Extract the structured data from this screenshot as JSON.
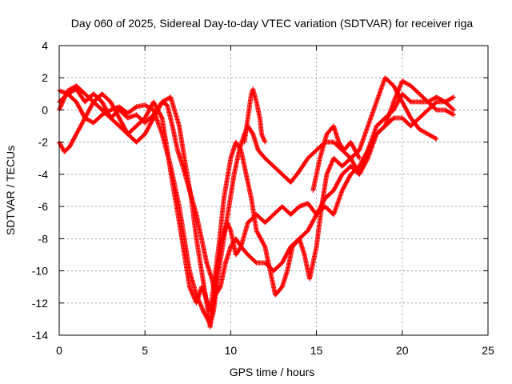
{
  "chart_data": {
    "type": "scatter",
    "title": "Day 060 of 2025, Sidereal Day-to-day VTEC variation (SDTVAR) for receiver riga",
    "xlabel": "GPS time / hours",
    "ylabel": "SDTVAR / TECUs",
    "xlim": [
      0,
      25
    ],
    "ylim": [
      -14,
      4
    ],
    "xticks": [
      0,
      5,
      10,
      15,
      20,
      25
    ],
    "yticks": [
      -14,
      -12,
      -10,
      -8,
      -6,
      -4,
      -2,
      0,
      2,
      4
    ],
    "grid": true,
    "marker": "+",
    "color": "#ff0000",
    "series": [
      {
        "points": [
          [
            0.0,
            1.2
          ],
          [
            0.5,
            1.0
          ],
          [
            1.0,
            0.5
          ],
          [
            1.5,
            -0.5
          ],
          [
            2.0,
            -0.8
          ],
          [
            2.5,
            -0.3
          ],
          [
            3.0,
            0.0
          ],
          [
            3.5,
            0.2
          ],
          [
            4.0,
            -0.2
          ],
          [
            4.5,
            0.2
          ],
          [
            5.0,
            0.3
          ],
          [
            5.5,
            0.0
          ],
          [
            6.0,
            -1.5
          ],
          [
            6.5,
            -3.5
          ],
          [
            7.0,
            -6.0
          ],
          [
            7.3,
            -8.0
          ],
          [
            7.6,
            -10.0
          ],
          [
            8.0,
            -11.5
          ],
          [
            8.4,
            -12.5
          ],
          [
            8.8,
            -13.3
          ],
          [
            9.0,
            -12.5
          ],
          [
            9.3,
            -10.0
          ],
          [
            9.6,
            -8.0
          ],
          [
            9.9,
            -6.0
          ],
          [
            10.2,
            -4.0
          ],
          [
            10.5,
            -2.5
          ],
          [
            10.8,
            -1.5
          ],
          [
            11.0,
            -1.0
          ],
          [
            11.3,
            -1.5
          ],
          [
            11.6,
            -2.5
          ],
          [
            12.0,
            -3.0
          ],
          [
            12.5,
            -3.5
          ],
          [
            13.0,
            -4.0
          ],
          [
            13.5,
            -4.5
          ],
          [
            14.0,
            -3.8
          ],
          [
            14.5,
            -3.0
          ],
          [
            15.0,
            -2.5
          ],
          [
            15.5,
            -2.0
          ],
          [
            16.0,
            -2.0
          ],
          [
            16.5,
            -2.5
          ],
          [
            17.0,
            -3.0
          ],
          [
            17.5,
            -2.5
          ],
          [
            18.0,
            -1.0
          ],
          [
            18.5,
            0.5
          ],
          [
            19.0,
            2.0
          ],
          [
            19.5,
            1.5
          ],
          [
            20.0,
            0.5
          ],
          [
            20.5,
            -0.5
          ],
          [
            21.0,
            -1.2
          ],
          [
            21.5,
            -1.5
          ],
          [
            22.0,
            -1.8
          ]
        ]
      },
      {
        "points": [
          [
            0.0,
            -2.0
          ],
          [
            0.3,
            -2.6
          ],
          [
            0.6,
            -2.3
          ],
          [
            1.0,
            -1.5
          ],
          [
            1.5,
            -0.5
          ],
          [
            2.0,
            0.5
          ],
          [
            2.5,
            1.0
          ],
          [
            3.0,
            0.5
          ],
          [
            3.5,
            -0.5
          ],
          [
            4.0,
            -1.5
          ],
          [
            4.5,
            -2.0
          ],
          [
            5.0,
            -1.5
          ],
          [
            5.5,
            -0.5
          ],
          [
            6.0,
            0.5
          ],
          [
            6.5,
            0.8
          ],
          [
            7.0,
            -1.0
          ],
          [
            7.3,
            -3.0
          ],
          [
            7.7,
            -5.5
          ],
          [
            8.0,
            -8.0
          ],
          [
            8.3,
            -10.0
          ],
          [
            8.6,
            -12.0
          ],
          [
            8.8,
            -13.5
          ],
          [
            9.0,
            -12.0
          ],
          [
            9.2,
            -10.0
          ],
          [
            9.5,
            -8.0
          ],
          [
            9.8,
            -7.0
          ],
          [
            10.0,
            -7.5
          ],
          [
            10.3,
            -9.0
          ],
          [
            10.6,
            -8.5
          ],
          [
            11.0,
            -7.0
          ],
          [
            11.5,
            -6.5
          ],
          [
            12.0,
            -7.0
          ],
          [
            12.5,
            -6.5
          ],
          [
            13.0,
            -6.0
          ],
          [
            13.5,
            -6.5
          ],
          [
            14.0,
            -6.0
          ],
          [
            14.5,
            -5.8
          ],
          [
            15.0,
            -6.5
          ],
          [
            15.5,
            -6.0
          ],
          [
            16.0,
            -6.5
          ],
          [
            16.5,
            -5.0
          ],
          [
            17.0,
            -4.0
          ],
          [
            17.5,
            -3.5
          ],
          [
            18.0,
            -2.5
          ],
          [
            18.5,
            -1.0
          ],
          [
            19.0,
            -0.5
          ],
          [
            19.5,
            0.0
          ],
          [
            20.0,
            1.0
          ],
          [
            20.5,
            0.5
          ],
          [
            21.0,
            0.5
          ],
          [
            21.5,
            0.5
          ],
          [
            22.0,
            0.8
          ],
          [
            22.5,
            0.5
          ],
          [
            23.0,
            0.0
          ]
        ]
      },
      {
        "points": [
          [
            0.0,
            0.5
          ],
          [
            0.5,
            1.0
          ],
          [
            1.0,
            1.3
          ],
          [
            1.5,
            0.5
          ],
          [
            2.0,
            1.0
          ],
          [
            2.5,
            0.5
          ],
          [
            3.0,
            -0.5
          ],
          [
            3.5,
            -1.0
          ],
          [
            4.0,
            -1.5
          ],
          [
            4.5,
            -1.0
          ],
          [
            5.0,
            -0.5
          ],
          [
            5.5,
            0.5
          ],
          [
            6.0,
            -0.5
          ],
          [
            6.3,
            -2.5
          ],
          [
            6.6,
            -4.5
          ],
          [
            7.0,
            -7.0
          ],
          [
            7.3,
            -9.0
          ],
          [
            7.6,
            -11.0
          ],
          [
            8.0,
            -12.0
          ],
          [
            8.3,
            -11.0
          ],
          [
            8.5,
            -11.5
          ],
          [
            8.8,
            -12.5
          ],
          [
            9.0,
            -11.0
          ],
          [
            9.3,
            -8.5
          ],
          [
            9.6,
            -5.5
          ],
          [
            10.0,
            -3.0
          ],
          [
            10.3,
            -2.0
          ],
          [
            10.6,
            -2.5
          ],
          [
            10.9,
            -4.0
          ],
          [
            11.2,
            -5.5
          ],
          [
            11.5,
            -7.5
          ],
          [
            12.0,
            -8.5
          ],
          [
            12.3,
            -10.0
          ],
          [
            12.6,
            -11.5
          ],
          [
            13.0,
            -11.0
          ],
          [
            13.3,
            -10.0
          ],
          [
            13.6,
            -8.5
          ],
          [
            14.0,
            -8.0
          ],
          [
            14.3,
            -9.0
          ],
          [
            14.6,
            -10.5
          ],
          [
            15.0,
            -8.5
          ],
          [
            15.3,
            -6.0
          ],
          [
            15.6,
            -4.0
          ],
          [
            16.0,
            -3.0
          ],
          [
            16.5,
            -3.5
          ],
          [
            17.0,
            -3.0
          ],
          [
            17.5,
            -4.0
          ],
          [
            18.0,
            -3.0
          ],
          [
            18.5,
            -1.5
          ],
          [
            19.0,
            -1.0
          ],
          [
            19.5,
            -0.5
          ],
          [
            20.0,
            -0.5
          ],
          [
            20.5,
            -1.0
          ],
          [
            21.0,
            -0.5
          ],
          [
            21.5,
            0.0
          ],
          [
            22.0,
            0.5
          ],
          [
            22.5,
            0.5
          ],
          [
            23.0,
            0.8
          ]
        ]
      },
      {
        "points": [
          [
            0.0,
            0.0
          ],
          [
            0.5,
            1.2
          ],
          [
            1.0,
            1.5
          ],
          [
            1.5,
            1.0
          ],
          [
            2.0,
            0.5
          ],
          [
            2.5,
            0.0
          ],
          [
            3.0,
            -0.5
          ],
          [
            3.5,
            0.0
          ],
          [
            4.0,
            -0.5
          ],
          [
            4.5,
            -0.3
          ],
          [
            5.0,
            -0.8
          ],
          [
            5.5,
            -0.3
          ],
          [
            6.0,
            0.5
          ],
          [
            6.3,
            0.3
          ],
          [
            6.6,
            -1.0
          ],
          [
            6.9,
            -2.5
          ],
          [
            7.2,
            -3.5
          ],
          [
            7.6,
            -5.0
          ],
          [
            8.0,
            -6.5
          ],
          [
            8.3,
            -8.0
          ],
          [
            8.6,
            -9.5
          ],
          [
            8.9,
            -10.5
          ],
          [
            9.1,
            -11.5
          ],
          [
            9.4,
            -11.0
          ],
          [
            9.7,
            -9.5
          ],
          [
            10.0,
            -8.5
          ],
          [
            10.3,
            -8.0
          ],
          [
            10.6,
            -8.5
          ],
          [
            11.0,
            -9.0
          ],
          [
            11.5,
            -9.5
          ],
          [
            12.0,
            -9.5
          ],
          [
            12.5,
            -10.0
          ],
          [
            13.0,
            -9.5
          ],
          [
            13.5,
            -8.5
          ],
          [
            14.0,
            -8.0
          ],
          [
            14.5,
            -7.5
          ],
          [
            15.0,
            -6.5
          ],
          [
            15.5,
            -5.5
          ],
          [
            16.0,
            -5.0
          ],
          [
            16.5,
            -4.0
          ],
          [
            17.0,
            -3.5
          ],
          [
            17.5,
            -4.0
          ],
          [
            18.0,
            -2.5
          ],
          [
            18.5,
            -1.5
          ],
          [
            19.0,
            -1.0
          ],
          [
            19.5,
            0.5
          ],
          [
            20.0,
            1.8
          ],
          [
            20.5,
            1.5
          ],
          [
            21.0,
            1.0
          ],
          [
            21.5,
            0.5
          ],
          [
            22.0,
            0.0
          ],
          [
            22.5,
            0.0
          ],
          [
            23.0,
            -0.3
          ]
        ]
      },
      {
        "points": [
          [
            10.8,
            -2.0
          ],
          [
            11.0,
            -0.5
          ],
          [
            11.2,
            1.0
          ],
          [
            11.3,
            1.3
          ],
          [
            11.5,
            0.5
          ],
          [
            11.7,
            -0.5
          ],
          [
            11.8,
            -1.5
          ],
          [
            12.0,
            -2.0
          ]
        ]
      },
      {
        "points": [
          [
            14.8,
            -5.0
          ],
          [
            15.2,
            -3.0
          ],
          [
            15.6,
            -1.5
          ],
          [
            16.0,
            -1.0
          ],
          [
            16.3,
            -2.0
          ],
          [
            16.6,
            -2.5
          ],
          [
            17.0,
            -2.0
          ],
          [
            17.5,
            -3.0
          ]
        ]
      }
    ]
  }
}
